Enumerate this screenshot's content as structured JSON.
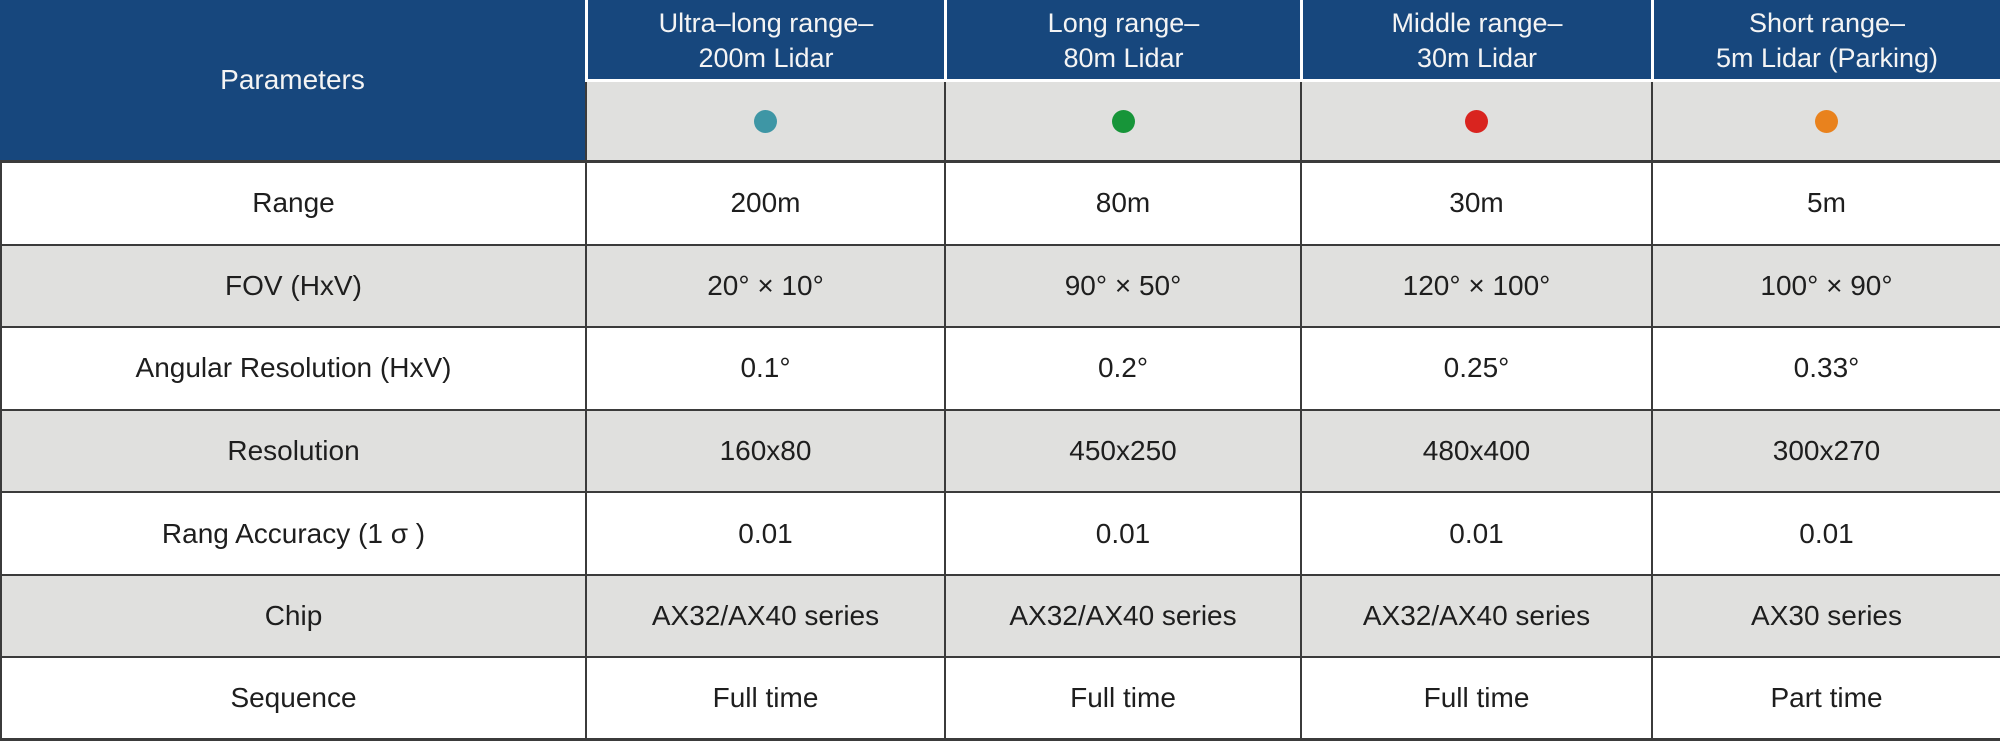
{
  "table": {
    "corner_header": "Parameters",
    "columns": [
      {
        "title_line1": "Ultra–long range–",
        "title_line2": "200m Lidar",
        "dot_color": "#3e96a5"
      },
      {
        "title_line1": "Long range–",
        "title_line2": "80m Lidar",
        "dot_color": "#179539"
      },
      {
        "title_line1": "Middle range–",
        "title_line2": "30m Lidar",
        "dot_color": "#d9241f"
      },
      {
        "title_line1": "Short range–",
        "title_line2": "5m Lidar (Parking)",
        "dot_color": "#e9821d"
      }
    ],
    "rows": [
      {
        "label": "Range",
        "values": [
          "200m",
          "80m",
          "30m",
          "5m"
        ]
      },
      {
        "label": "FOV (HxV)",
        "values": [
          "20° × 10°",
          "90° × 50°",
          "120° × 100°",
          "100° × 90°"
        ]
      },
      {
        "label": "Angular Resolution (HxV)",
        "values": [
          "0.1°",
          "0.2°",
          "0.25°",
          "0.33°"
        ]
      },
      {
        "label": "Resolution",
        "values": [
          "160x80",
          "450x250",
          "480x400",
          "300x270"
        ]
      },
      {
        "label": "Rang Accuracy (1 σ )",
        "values": [
          "0.01",
          "0.01",
          "0.01",
          "0.01"
        ]
      },
      {
        "label": "Chip",
        "values": [
          "AX32/AX40 series",
          "AX32/AX40 series",
          "AX32/AX40 series",
          "AX30 series"
        ]
      },
      {
        "label": "Sequence",
        "values": [
          "Full time",
          "Full time",
          "Full time",
          "Part time"
        ]
      }
    ],
    "colors": {
      "header_bg": "#17477d",
      "row_alt_bg": "#e0e0de",
      "border": "#3b3b3b",
      "teal_dot": "#3e96a5",
      "green_dot": "#179539",
      "red_dot": "#d9241f",
      "orange_dot": "#e9821d"
    }
  },
  "chart_data": {
    "type": "table",
    "title": "Lidar parameters comparison",
    "columns": [
      "Parameters",
      "Ultra–long range– 200m Lidar",
      "Long range– 80m Lidar",
      "Middle range– 30m Lidar",
      "Short range– 5m Lidar (Parking)"
    ],
    "rows": [
      [
        "Range",
        "200m",
        "80m",
        "30m",
        "5m"
      ],
      [
        "FOV (HxV)",
        "20° × 10°",
        "90° × 50°",
        "120° × 100°",
        "100° × 90°"
      ],
      [
        "Angular Resolution (HxV)",
        "0.1°",
        "0.2°",
        "0.25°",
        "0.33°"
      ],
      [
        "Resolution",
        "160x80",
        "450x250",
        "480x400",
        "300x270"
      ],
      [
        "Rang Accuracy (1 σ )",
        "0.01",
        "0.01",
        "0.01",
        "0.01"
      ],
      [
        "Chip",
        "AX32/AX40 series",
        "AX32/AX40 series",
        "AX32/AX40 series",
        "AX30 series"
      ],
      [
        "Sequence",
        "Full time",
        "Full time",
        "Full time",
        "Part time"
      ]
    ],
    "legend_dot_colors": [
      "#3e96a5",
      "#179539",
      "#d9241f",
      "#e9821d"
    ]
  }
}
